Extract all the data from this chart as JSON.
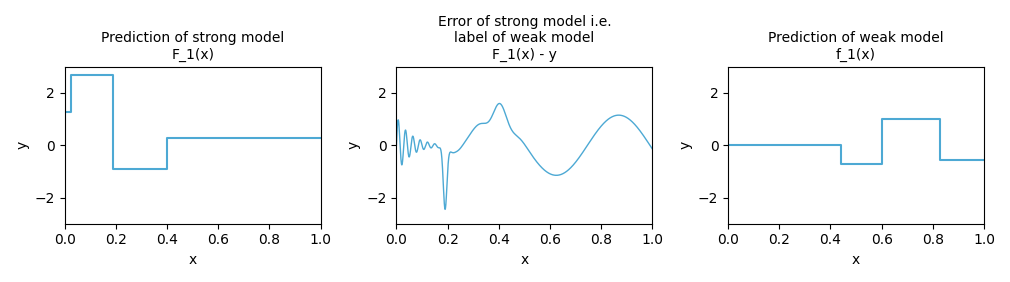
{
  "title1": "Prediction of strong model\nF_1(x)",
  "title2": "Error of strong model i.e.\nlabel of weak model\nF_1(x) - y",
  "title3": "Prediction of weak model\nf_1(x)",
  "xlabel": "x",
  "ylabel": "y",
  "ylim": [
    -3,
    3
  ],
  "xlim": [
    0.0,
    1.0
  ],
  "line_color": "#4da9d4",
  "figsize": [
    10.1,
    2.82
  ],
  "dpi": 100,
  "plot1_steps": [
    [
      0.0,
      1.28
    ],
    [
      0.025,
      1.28
    ],
    [
      0.025,
      2.68
    ],
    [
      0.19,
      2.68
    ],
    [
      0.19,
      -0.9
    ],
    [
      0.4,
      -0.9
    ],
    [
      0.4,
      0.26
    ],
    [
      1.0,
      0.26
    ]
  ],
  "plot3_steps": [
    [
      0.0,
      0.0
    ],
    [
      0.44,
      0.0
    ],
    [
      0.44,
      -0.7
    ],
    [
      0.6,
      -0.7
    ],
    [
      0.6,
      1.0
    ],
    [
      0.83,
      1.0
    ],
    [
      0.83,
      -0.55
    ],
    [
      1.0,
      -0.55
    ]
  ]
}
